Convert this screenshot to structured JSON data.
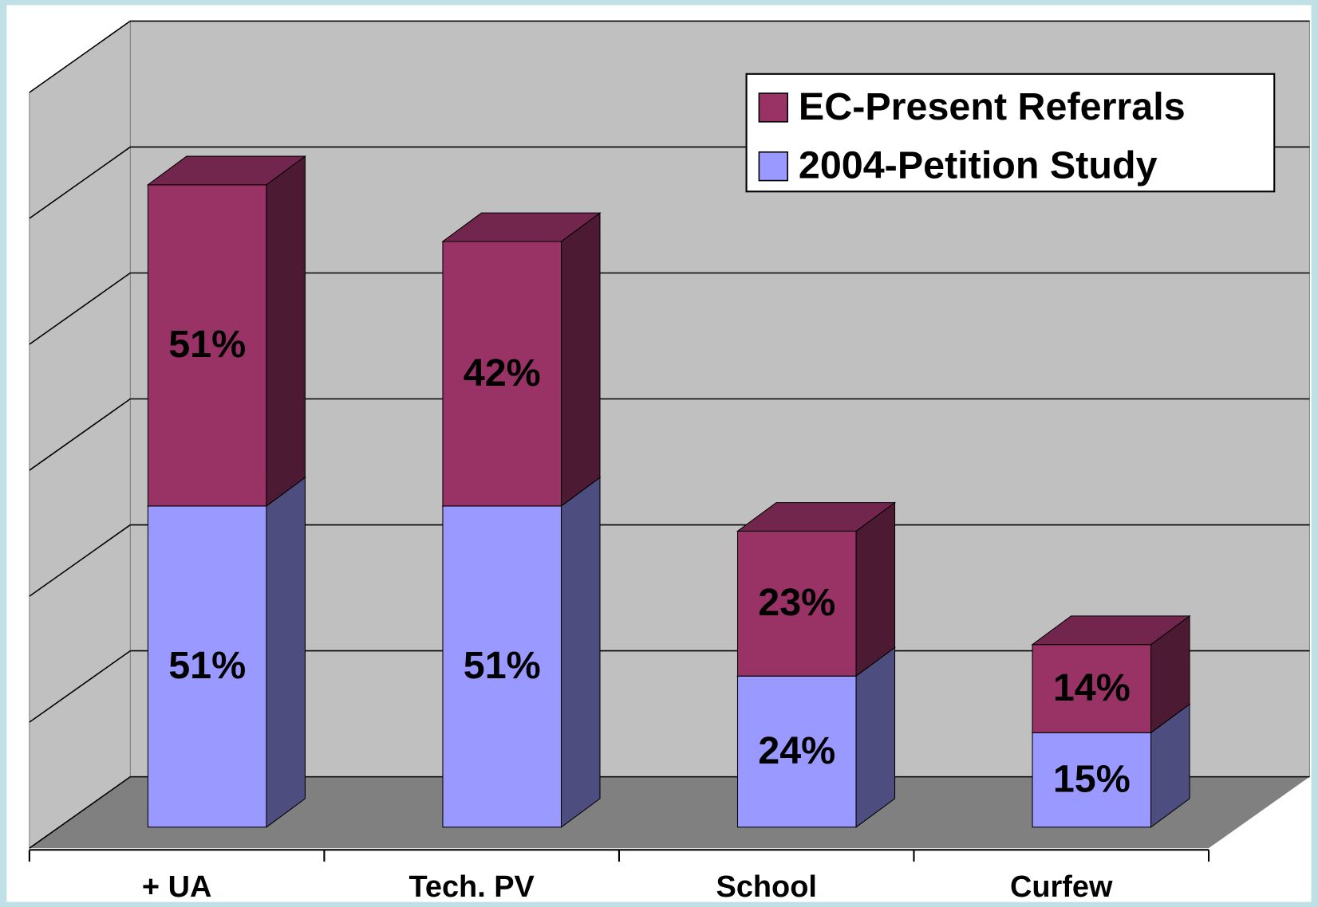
{
  "chart_data": {
    "type": "bar3d_stacked",
    "categories": [
      "+ UA",
      "Tech. PV",
      "School",
      "Curfew"
    ],
    "series": [
      {
        "name": "2004-Petition Study",
        "color": "#9999ff",
        "values": [
          51,
          51,
          24,
          15
        ],
        "value_labels": [
          "51%",
          "51%",
          "24%",
          "15%"
        ]
      },
      {
        "name": "EC-Present Referrals",
        "color": "#993366",
        "values": [
          51,
          42,
          23,
          14
        ],
        "value_labels": [
          "51%",
          "42%",
          "23%",
          "14%"
        ]
      }
    ],
    "ylim": [
      0,
      120
    ],
    "yticks": [
      0,
      20,
      40,
      60,
      80,
      100,
      120
    ],
    "grid": true,
    "legend": "top-right"
  }
}
